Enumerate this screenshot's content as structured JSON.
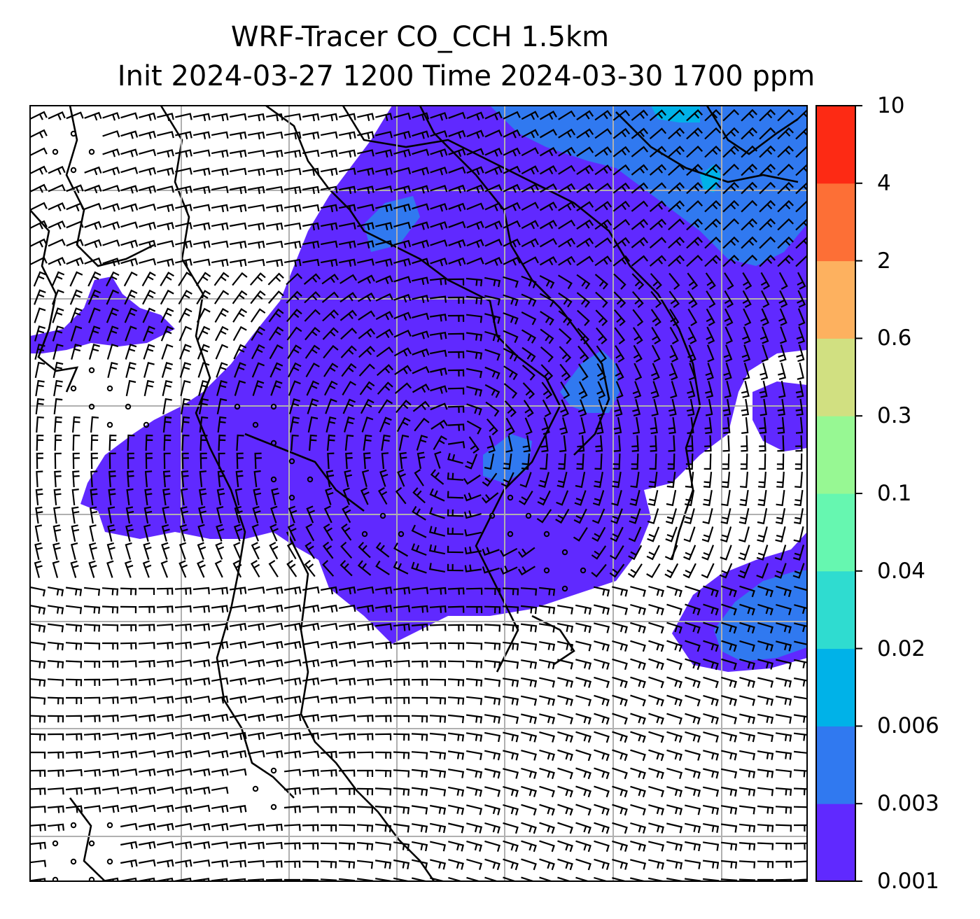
{
  "title": {
    "line1": "WRF-Tracer CO_CCH 1.5km",
    "line2": "Init 2024-03-27 1200 Time 2024-03-30 1700 ppm"
  },
  "colorbar": {
    "levels": [
      "0.001",
      "0.003",
      "0.006",
      "0.02",
      "0.04",
      "0.1",
      "0.3",
      "0.6",
      "2",
      "4",
      "10"
    ],
    "colors": [
      "#6029ff",
      "#3079f0",
      "#00b2e8",
      "#2fdcd0",
      "#66f7b0",
      "#97f893",
      "#d1e081",
      "#fdb15f",
      "#fd6f36",
      "#fd2a14"
    ]
  },
  "map": {
    "grid": "on",
    "colors": {
      "plume": "#6029ff",
      "plume_high": "#3079f0",
      "plume_peak": "#00b2e8",
      "grid": "#b0b0b0",
      "barb": "#000000"
    }
  }
}
